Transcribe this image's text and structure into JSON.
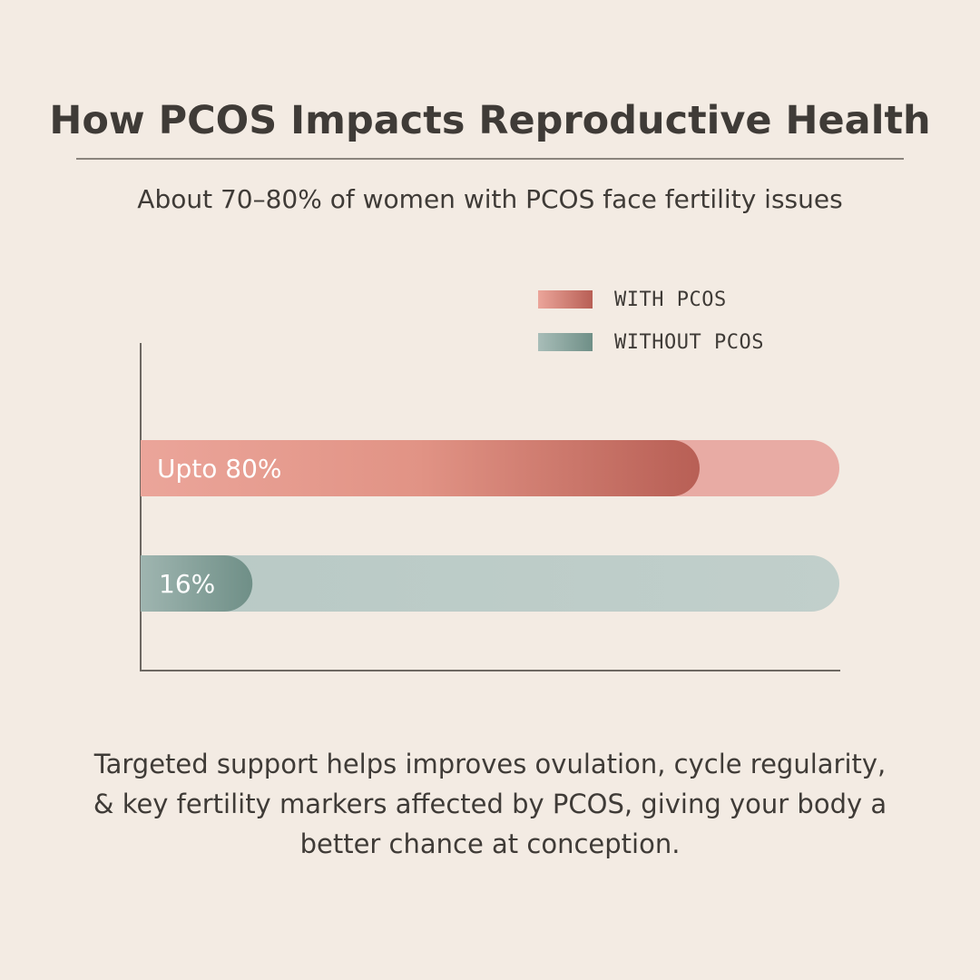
{
  "title": "How PCOS Impacts Reproductive Health",
  "subtitle": "About 70–80% of women with PCOS face fertility issues",
  "footer": "Targeted support helps improves ovulation, cycle regularity, & key fertility markers affected by PCOS, giving your body a better chance at conception.",
  "colors": {
    "background": "#f3ebe3",
    "with_pcos_light": "#eba59a",
    "with_pcos_dark": "#b85f55",
    "with_pcos_track": "#e8aba4",
    "without_pcos_light": "#a8bdb8",
    "without_pcos_dark": "#6f8f87",
    "without_pcos_track": "#bccbc8"
  },
  "chart_data": {
    "type": "bar",
    "orientation": "horizontal",
    "title": "",
    "xlim": [
      0,
      100
    ],
    "legend": {
      "placement": "top-right",
      "entries": [
        "WITH PCOS",
        "WITHOUT PCOS"
      ]
    },
    "series": [
      {
        "name": "WITH PCOS",
        "value": 80,
        "label": "Upto 80%"
      },
      {
        "name": "WITHOUT PCOS",
        "value": 16,
        "label": "16%"
      }
    ]
  }
}
